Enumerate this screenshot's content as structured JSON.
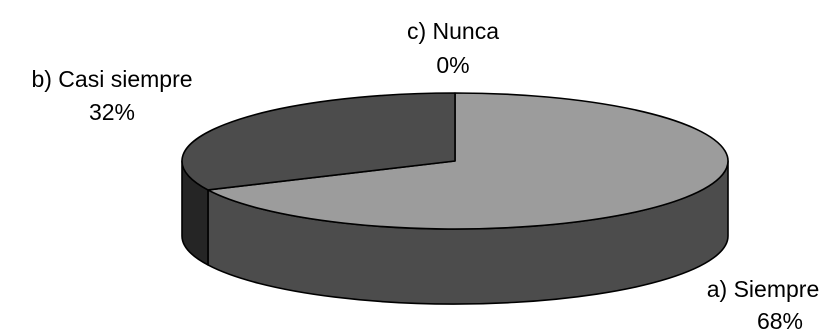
{
  "chart_data": {
    "type": "pie",
    "style": "3d",
    "categories": [
      "a) Siempre",
      "b) Casi siempre",
      "c) Nunca"
    ],
    "values": [
      68,
      32,
      0
    ],
    "value_labels": [
      "68%",
      "32%",
      "0%"
    ],
    "colors": {
      "a) Siempre": "#9c9c9c",
      "b) Casi siempre": "#4c4c4c",
      "c) Nunca": "#1c1c1c"
    },
    "side_colors": {
      "a) Siempre": "#4c4c4c",
      "b) Casi siempre": "#252525"
    },
    "outline_color": "#000000",
    "legend": "none"
  }
}
